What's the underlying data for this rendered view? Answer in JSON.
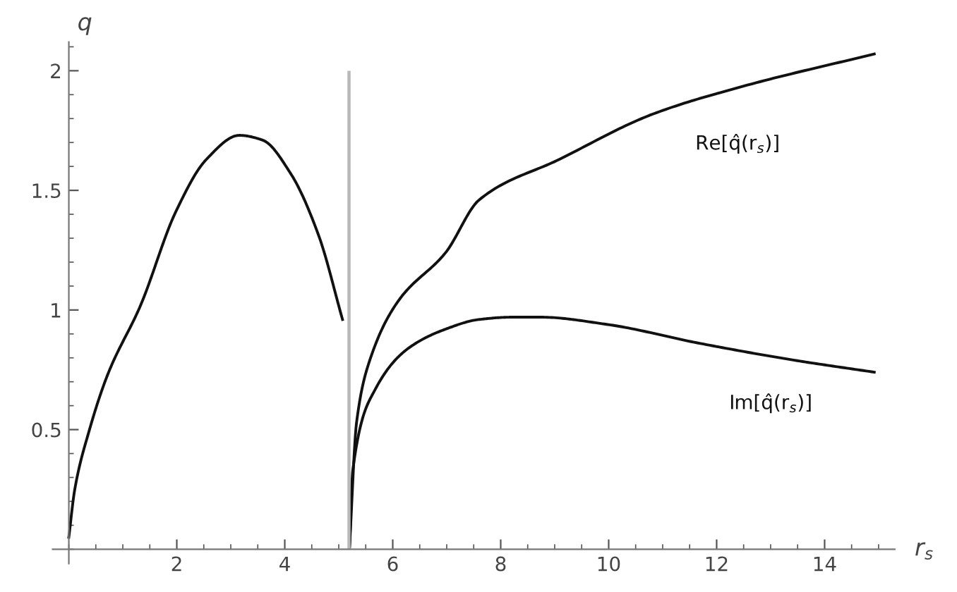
{
  "chart_data": {
    "type": "line",
    "xlabel": "r$_{s}$",
    "ylabel": "q",
    "xlim": [
      -0.3,
      15.3
    ],
    "ylim": [
      -0.06,
      2.12
    ],
    "xticks": [
      2,
      4,
      6,
      8,
      10,
      12,
      14
    ],
    "yticks": [
      0.5,
      1,
      1.5,
      2
    ],
    "grid": false,
    "ref_lines": [
      {
        "axis": "x",
        "value": 5.19,
        "color": "#b8b8b8"
      }
    ],
    "series": [
      {
        "color": "#111111",
        "x": [
          0,
          0.11,
          0.37,
          0.72,
          1.33,
          1.98,
          2.55,
          3.16,
          3.59,
          4.11,
          4.63,
          5.07
        ],
        "values": [
          0.05,
          0.25,
          0.49,
          0.73,
          1.02,
          1.41,
          1.63,
          1.73,
          1.71,
          1.57,
          1.31,
          0.96
        ]
      },
      {
        "name": "Re[q̂(r$_{s}$)]",
        "color": "#111111",
        "x": [
          5.2,
          5.33,
          5.59,
          6.11,
          6.98,
          7.6,
          9.09,
          10.83,
          12.57,
          14.92
        ],
        "values": [
          0.01,
          0.53,
          0.8,
          1.04,
          1.24,
          1.46,
          1.63,
          1.82,
          1.94,
          2.07
        ]
      },
      {
        "name": "Im[q̂(r$_{s}$)]",
        "color": "#111111",
        "x": [
          5.2,
          5.26,
          5.68,
          6.29,
          6.98,
          7.59,
          8.21,
          8.74,
          9.96,
          11.7,
          13.44,
          14.92
        ],
        "values": [
          0.01,
          0.33,
          0.67,
          0.84,
          0.92,
          0.96,
          0.97,
          0.97,
          0.94,
          0.86,
          0.79,
          0.74
        ]
      }
    ]
  }
}
